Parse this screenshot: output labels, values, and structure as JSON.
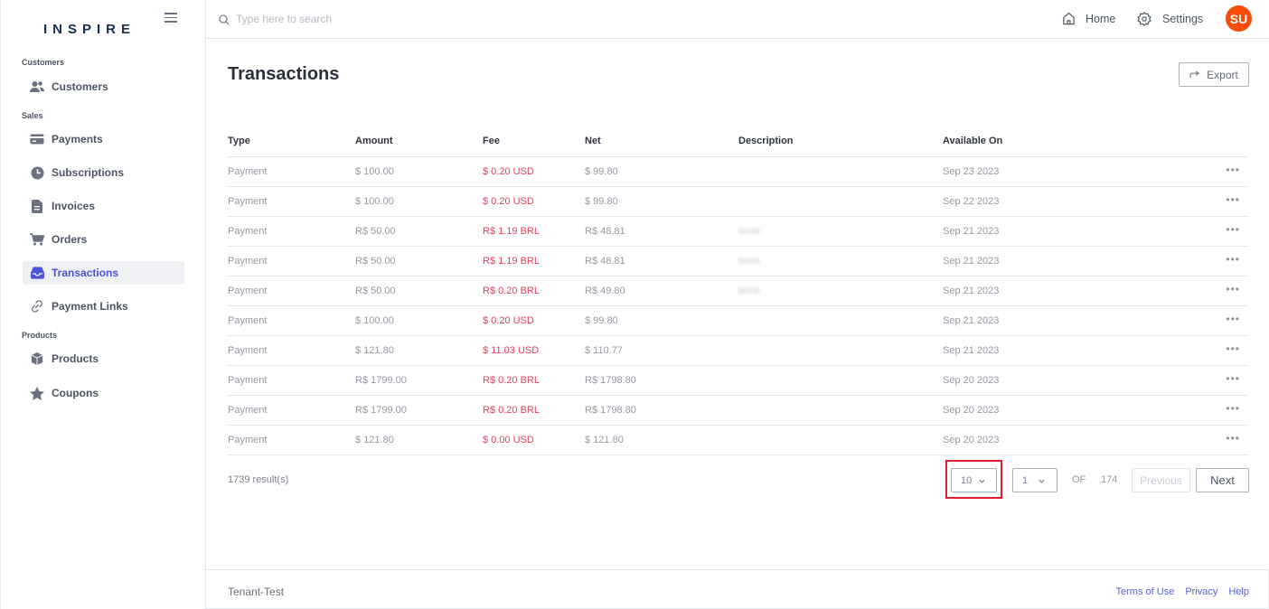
{
  "sidebar": {
    "logo": "INSPIRE",
    "sections": [
      {
        "label": "Customers"
      },
      {
        "label": "Sales"
      },
      {
        "label": "Products"
      }
    ],
    "items": [
      {
        "label": "Customers",
        "icon": "users-icon"
      },
      {
        "label": "Payments",
        "icon": "credit-card-icon"
      },
      {
        "label": "Subscriptions",
        "icon": "clock-icon"
      },
      {
        "label": "Invoices",
        "icon": "document-icon"
      },
      {
        "label": "Orders",
        "icon": "cart-icon"
      },
      {
        "label": "Transactions",
        "icon": "inbox-icon",
        "active": true
      },
      {
        "label": "Payment Links",
        "icon": "link-icon"
      },
      {
        "label": "Products",
        "icon": "box-icon"
      },
      {
        "label": "Coupons",
        "icon": "star-icon"
      }
    ]
  },
  "topbar": {
    "search_placeholder": "Type here to search",
    "home_label": "Home",
    "settings_label": "Settings",
    "avatar_initials": "SU"
  },
  "main": {
    "title": "Transactions",
    "export_label": "Export",
    "columns": [
      "Type",
      "Amount",
      "Fee",
      "Net",
      "Description",
      "Available On"
    ],
    "rows": [
      {
        "type": "Payment",
        "amount": "$ 100.00",
        "fee": "$ 0.20 USD",
        "net": "$ 99.80",
        "description": "",
        "available": "Sep 23 2023"
      },
      {
        "type": "Payment",
        "amount": "$ 100.00",
        "fee": "$ 0.20 USD",
        "net": "$ 99.80",
        "description": "",
        "available": "Sep 22 2023"
      },
      {
        "type": "Payment",
        "amount": "R$ 50.00",
        "fee": "R$ 1.19 BRL",
        "net": "R$ 48.81",
        "description": "teste",
        "available": "Sep 21 2023"
      },
      {
        "type": "Payment",
        "amount": "R$ 50.00",
        "fee": "R$ 1.19 BRL",
        "net": "R$ 48.81",
        "description": "teste",
        "available": "Sep 21 2023"
      },
      {
        "type": "Payment",
        "amount": "R$ 50.00",
        "fee": "R$ 0.20 BRL",
        "net": "R$ 49.80",
        "description": "teste",
        "available": "Sep 21 2023"
      },
      {
        "type": "Payment",
        "amount": "$ 100.00",
        "fee": "$ 0.20 USD",
        "net": "$ 99.80",
        "description": "",
        "available": "Sep 21 2023"
      },
      {
        "type": "Payment",
        "amount": "$ 121.80",
        "fee": "$ 11.03 USD",
        "net": "$ 110.77",
        "description": "",
        "available": "Sep 21 2023"
      },
      {
        "type": "Payment",
        "amount": "R$ 1799.00",
        "fee": "R$ 0.20 BRL",
        "net": "R$ 1798.80",
        "description": "",
        "available": "Sep 20 2023"
      },
      {
        "type": "Payment",
        "amount": "R$ 1799.00",
        "fee": "R$ 0.20 BRL",
        "net": "R$ 1798.80",
        "description": "",
        "available": "Sep 20 2023"
      },
      {
        "type": "Payment",
        "amount": "$ 121.80",
        "fee": "$ 0.00 USD",
        "net": "$ 121.80",
        "description": "",
        "available": "Sep 20 2023"
      }
    ],
    "row_menu": "•••",
    "pagination": {
      "results": "1739 result(s)",
      "page_size": "10",
      "current_page": "1",
      "of_label": "OF",
      "total_pages": "174",
      "previous_label": "Previous",
      "next_label": "Next"
    }
  },
  "footer": {
    "tenant": "Tenant-Test",
    "links": [
      "Terms of Use",
      "Privacy",
      "Help"
    ]
  },
  "colors": {
    "accent": "#4d53d6",
    "fee": "#e63d5a",
    "avatar": "#f54e0a",
    "highlight": "#e01e2d"
  }
}
